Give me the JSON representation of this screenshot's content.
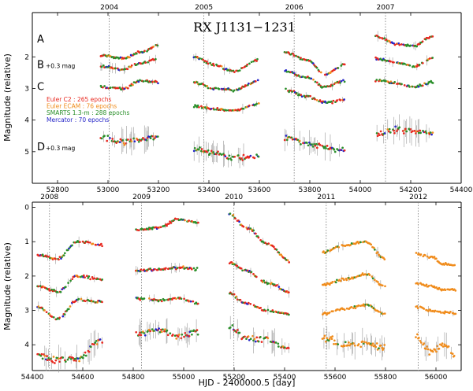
{
  "chart_data": [
    {
      "type": "scatter",
      "title": "RX J1131−1231",
      "xlabel": "",
      "ylabel": "Magnitude (relative)",
      "xlim": [
        52700,
        54400
      ],
      "ylim": [
        6.0,
        0.6
      ],
      "xticks": [
        52800,
        53000,
        53200,
        53400,
        53600,
        53800,
        54000,
        54200,
        54400
      ],
      "yticks": [
        2,
        3,
        4,
        5
      ],
      "seasons": [
        {
          "year": "2004",
          "x": 53005
        },
        {
          "year": "2005",
          "x": 53380
        },
        {
          "year": "2006",
          "x": 53738
        },
        {
          "year": "2007",
          "x": 54100
        }
      ],
      "curve_labels": [
        {
          "name": "A",
          "offset": "",
          "y": 1.55
        },
        {
          "name": "B",
          "offset": "+0.3 mag",
          "y": 2.35
        },
        {
          "name": "C",
          "offset": "",
          "y": 3.05
        },
        {
          "name": "D",
          "offset": "+0.3 mag",
          "y": 4.95
        }
      ],
      "legend": [
        {
          "label": "Euler C2 : 265 epochs",
          "color": "#e8281f"
        },
        {
          "label": "Euler ECAM : 76 epochs",
          "color": "#f08c1c"
        },
        {
          "label": "SMARTS 1.3-m : 288 epochs",
          "color": "#2a8f2a"
        },
        {
          "label": "Mercator : 70 epochs",
          "color": "#2626c8"
        }
      ],
      "series": [
        {
          "name": "A",
          "segments": [
            {
              "x0": 52970,
              "x1": 53200,
              "nodes": [
                [
                  52970,
                  1.95
                ],
                [
                  53060,
                  2.05
                ],
                [
                  53130,
                  1.85
                ],
                [
                  53200,
                  1.65
                ]
              ]
            },
            {
              "x0": 53340,
              "x1": 53600,
              "nodes": [
                [
                  53340,
                  2.0
                ],
                [
                  53420,
                  2.25
                ],
                [
                  53500,
                  2.45
                ],
                [
                  53600,
                  2.1
                ]
              ]
            },
            {
              "x0": 53700,
              "x1": 53940,
              "nodes": [
                [
                  53700,
                  1.85
                ],
                [
                  53790,
                  2.1
                ],
                [
                  53860,
                  2.55
                ],
                [
                  53940,
                  2.25
                ]
              ]
            },
            {
              "x0": 54060,
              "x1": 54290,
              "nodes": [
                [
                  54060,
                  1.35
                ],
                [
                  54150,
                  1.6
                ],
                [
                  54210,
                  1.65
                ],
                [
                  54290,
                  1.35
                ]
              ]
            }
          ]
        },
        {
          "name": "B",
          "segments": [
            {
              "x0": 52970,
              "x1": 53200,
              "nodes": [
                [
                  52970,
                  2.3
                ],
                [
                  53060,
                  2.4
                ],
                [
                  53130,
                  2.2
                ],
                [
                  53200,
                  2.05
                ]
              ]
            },
            {
              "x0": 53340,
              "x1": 53600,
              "nodes": [
                [
                  53340,
                  2.8
                ],
                [
                  53420,
                  3.0
                ],
                [
                  53500,
                  3.05
                ],
                [
                  53600,
                  2.75
                ]
              ]
            },
            {
              "x0": 53700,
              "x1": 53940,
              "nodes": [
                [
                  53700,
                  2.45
                ],
                [
                  53790,
                  2.65
                ],
                [
                  53860,
                  2.95
                ],
                [
                  53940,
                  2.75
                ]
              ]
            },
            {
              "x0": 54060,
              "x1": 54290,
              "nodes": [
                [
                  54060,
                  2.05
                ],
                [
                  54150,
                  2.2
                ],
                [
                  54210,
                  2.3
                ],
                [
                  54290,
                  2.05
                ]
              ]
            }
          ]
        },
        {
          "name": "C",
          "segments": [
            {
              "x0": 52970,
              "x1": 53200,
              "nodes": [
                [
                  52970,
                  2.95
                ],
                [
                  53060,
                  3.0
                ],
                [
                  53130,
                  2.75
                ],
                [
                  53200,
                  2.8
                ]
              ]
            },
            {
              "x0": 53340,
              "x1": 53600,
              "nodes": [
                [
                  53340,
                  3.55
                ],
                [
                  53420,
                  3.65
                ],
                [
                  53500,
                  3.7
                ],
                [
                  53600,
                  3.5
                ]
              ]
            },
            {
              "x0": 53700,
              "x1": 53940,
              "nodes": [
                [
                  53700,
                  3.05
                ],
                [
                  53790,
                  3.25
                ],
                [
                  53860,
                  3.45
                ],
                [
                  53940,
                  3.35
                ]
              ]
            },
            {
              "x0": 54060,
              "x1": 54290,
              "nodes": [
                [
                  54060,
                  2.75
                ],
                [
                  54150,
                  2.85
                ],
                [
                  54210,
                  2.95
                ],
                [
                  54290,
                  2.8
                ]
              ]
            }
          ]
        },
        {
          "name": "D",
          "segments": [
            {
              "x0": 52970,
              "x1": 53200,
              "nodes": [
                [
                  52970,
                  4.55
                ],
                [
                  53060,
                  4.7
                ],
                [
                  53130,
                  4.6
                ],
                [
                  53200,
                  4.55
                ]
              ]
            },
            {
              "x0": 53340,
              "x1": 53600,
              "nodes": [
                [
                  53340,
                  4.9
                ],
                [
                  53420,
                  5.05
                ],
                [
                  53500,
                  5.2
                ],
                [
                  53600,
                  5.15
                ]
              ]
            },
            {
              "x0": 53700,
              "x1": 53940,
              "nodes": [
                [
                  53700,
                  4.55
                ],
                [
                  53790,
                  4.75
                ],
                [
                  53860,
                  4.85
                ],
                [
                  53940,
                  4.95
                ]
              ]
            },
            {
              "x0": 54060,
              "x1": 54290,
              "nodes": [
                [
                  54060,
                  4.45
                ],
                [
                  54150,
                  4.3
                ],
                [
                  54210,
                  4.35
                ],
                [
                  54290,
                  4.4
                ]
              ]
            }
          ]
        }
      ]
    },
    {
      "type": "scatter",
      "title": "",
      "xlabel": "HJD - 2400000.5 [day]",
      "ylabel": "Magnitude (relative)",
      "xlim": [
        54400,
        56100
      ],
      "ylim": [
        4.75,
        -0.15
      ],
      "xticks": [
        54400,
        54600,
        54800,
        55000,
        55200,
        55400,
        55600,
        55800,
        56000
      ],
      "yticks": [
        0,
        1,
        2,
        3,
        4
      ],
      "seasons": [
        {
          "year": "2008",
          "x": 54468
        },
        {
          "year": "2009",
          "x": 54833
        },
        {
          "year": "2010",
          "x": 55199
        },
        {
          "year": "2011",
          "x": 55565
        },
        {
          "year": "2012",
          "x": 55930
        }
      ],
      "series": [
        {
          "name": "A",
          "segments": [
            {
              "x0": 54420,
              "x1": 54680,
              "nodes": [
                [
                  54420,
                  1.4
                ],
                [
                  54500,
                  1.5
                ],
                [
                  54580,
                  1.0
                ],
                [
                  54680,
                  1.1
                ]
              ]
            },
            {
              "x0": 54810,
              "x1": 55060,
              "nodes": [
                [
                  54810,
                  0.65
                ],
                [
                  54900,
                  0.6
                ],
                [
                  54980,
                  0.35
                ],
                [
                  55060,
                  0.45
                ]
              ]
            },
            {
              "x0": 55180,
              "x1": 55420,
              "nodes": [
                [
                  55180,
                  0.2
                ],
                [
                  55250,
                  0.6
                ],
                [
                  55330,
                  1.05
                ],
                [
                  55420,
                  1.55
                ]
              ]
            },
            {
              "x0": 55550,
              "x1": 55800,
              "nodes": [
                [
                  55550,
                  1.3
                ],
                [
                  55640,
                  1.1
                ],
                [
                  55720,
                  1.0
                ],
                [
                  55800,
                  1.5
                ]
              ]
            },
            {
              "x0": 55920,
              "x1": 56080,
              "nodes": [
                [
                  55920,
                  1.35
                ],
                [
                  55980,
                  1.45
                ],
                [
                  56030,
                  1.65
                ],
                [
                  56080,
                  1.7
                ]
              ]
            }
          ]
        },
        {
          "name": "B",
          "segments": [
            {
              "x0": 54420,
              "x1": 54680,
              "nodes": [
                [
                  54420,
                  2.3
                ],
                [
                  54500,
                  2.45
                ],
                [
                  54580,
                  2.0
                ],
                [
                  54680,
                  2.1
                ]
              ]
            },
            {
              "x0": 54810,
              "x1": 55060,
              "nodes": [
                [
                  54810,
                  1.85
                ],
                [
                  54900,
                  1.8
                ],
                [
                  54980,
                  1.75
                ],
                [
                  55060,
                  1.8
                ]
              ]
            },
            {
              "x0": 55180,
              "x1": 55420,
              "nodes": [
                [
                  55180,
                  1.6
                ],
                [
                  55250,
                  1.85
                ],
                [
                  55330,
                  2.2
                ],
                [
                  55420,
                  2.45
                ]
              ]
            },
            {
              "x0": 55550,
              "x1": 55800,
              "nodes": [
                [
                  55550,
                  2.25
                ],
                [
                  55640,
                  2.1
                ],
                [
                  55720,
                  1.95
                ],
                [
                  55800,
                  2.3
                ]
              ]
            },
            {
              "x0": 55920,
              "x1": 56080,
              "nodes": [
                [
                  55920,
                  2.2
                ],
                [
                  55980,
                  2.3
                ],
                [
                  56030,
                  2.4
                ],
                [
                  56080,
                  2.4
                ]
              ]
            }
          ]
        },
        {
          "name": "C",
          "segments": [
            {
              "x0": 54420,
              "x1": 54680,
              "nodes": [
                [
                  54420,
                  2.9
                ],
                [
                  54500,
                  3.25
                ],
                [
                  54580,
                  2.7
                ],
                [
                  54680,
                  2.75
                ]
              ]
            },
            {
              "x0": 54810,
              "x1": 55060,
              "nodes": [
                [
                  54810,
                  2.65
                ],
                [
                  54900,
                  2.7
                ],
                [
                  54980,
                  2.65
                ],
                [
                  55060,
                  2.8
                ]
              ]
            },
            {
              "x0": 55180,
              "x1": 55420,
              "nodes": [
                [
                  55180,
                  2.5
                ],
                [
                  55250,
                  2.8
                ],
                [
                  55330,
                  3.0
                ],
                [
                  55420,
                  3.1
                ]
              ]
            },
            {
              "x0": 55550,
              "x1": 55800,
              "nodes": [
                [
                  55550,
                  3.1
                ],
                [
                  55640,
                  2.95
                ],
                [
                  55720,
                  2.85
                ],
                [
                  55800,
                  3.1
                ]
              ]
            },
            {
              "x0": 55920,
              "x1": 56080,
              "nodes": [
                [
                  55920,
                  2.9
                ],
                [
                  55980,
                  3.0
                ],
                [
                  56030,
                  3.05
                ],
                [
                  56080,
                  3.1
                ]
              ]
            }
          ]
        },
        {
          "name": "D",
          "segments": [
            {
              "x0": 54420,
              "x1": 54680,
              "nodes": [
                [
                  54420,
                  4.3
                ],
                [
                  54500,
                  4.45
                ],
                [
                  54580,
                  4.4
                ],
                [
                  54680,
                  3.85
                ]
              ]
            },
            {
              "x0": 54810,
              "x1": 55060,
              "nodes": [
                [
                  54810,
                  3.7
                ],
                [
                  54900,
                  3.55
                ],
                [
                  54980,
                  3.75
                ],
                [
                  55060,
                  3.6
                ]
              ]
            },
            {
              "x0": 55180,
              "x1": 55420,
              "nodes": [
                [
                  55180,
                  3.5
                ],
                [
                  55250,
                  3.8
                ],
                [
                  55330,
                  3.85
                ],
                [
                  55420,
                  4.1
                ]
              ]
            },
            {
              "x0": 55550,
              "x1": 55800,
              "nodes": [
                [
                  55550,
                  3.8
                ],
                [
                  55640,
                  4.0
                ],
                [
                  55720,
                  3.95
                ],
                [
                  55800,
                  4.1
                ]
              ]
            },
            {
              "x0": 55920,
              "x1": 56080,
              "nodes": [
                [
                  55920,
                  3.75
                ],
                [
                  55980,
                  4.2
                ],
                [
                  56030,
                  4.0
                ],
                [
                  56080,
                  4.35
                ]
              ]
            }
          ]
        }
      ]
    }
  ]
}
